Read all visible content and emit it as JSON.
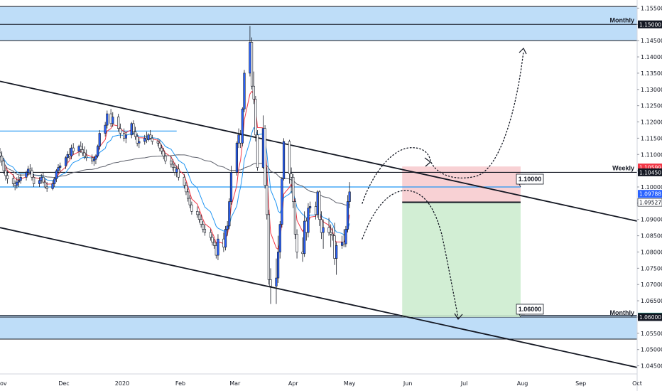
{
  "chart_data": {
    "type": "candlestick",
    "symbol": "EURUSD",
    "timeframe": "daily",
    "x_range": [
      "2019-10-28",
      "2020-10-01"
    ],
    "ylim": [
      1.0425,
      1.1575
    ],
    "x_ticks": [
      {
        "date": "2019-10-28",
        "label": "ov"
      },
      {
        "date": "2019-12-01",
        "label": "Dec"
      },
      {
        "date": "2020-01-01",
        "label": "2020"
      },
      {
        "date": "2020-02-01",
        "label": "Feb"
      },
      {
        "date": "2020-03-01",
        "label": "Mar"
      },
      {
        "date": "2020-04-01",
        "label": "Apr"
      },
      {
        "date": "2020-05-01",
        "label": "May"
      },
      {
        "date": "2020-06-01",
        "label": "Jun"
      },
      {
        "date": "2020-07-01",
        "label": "Jul"
      },
      {
        "date": "2020-08-01",
        "label": "Aug"
      },
      {
        "date": "2020-09-01",
        "label": "Sep"
      },
      {
        "date": "2020-10-01",
        "label": "Oct"
      }
    ],
    "y_ticks": [
      "1.15500",
      "1.15000",
      "1.14500",
      "1.14000",
      "1.13500",
      "1.13000",
      "1.12500",
      "1.12000",
      "1.11500",
      "1.11000",
      "1.10500",
      "1.10000",
      "1.09500",
      "1.09000",
      "1.08500",
      "1.08000",
      "1.07500",
      "1.07000",
      "1.06500",
      "1.06000",
      "1.05500",
      "1.05000",
      "1.04500"
    ],
    "price_badges": [
      {
        "value": 1.10599,
        "label": "1.10599",
        "bg": "#f23645",
        "fg": "#ffffff"
      },
      {
        "value": 1.1045,
        "label": "1.10450",
        "bg": "#131722",
        "fg": "#ffffff"
      },
      {
        "value": 1.09788,
        "label": "1.09788",
        "bg": "#2962ff",
        "fg": "#ffffff"
      },
      {
        "value": 1.09527,
        "label": "1.09527",
        "bg": "#ffffff",
        "fg": "#131722"
      },
      {
        "value": 1.06012,
        "label": "1.06012",
        "bg": "#22ab94",
        "fg": "#ffffff"
      },
      {
        "value": 1.06,
        "label": "1.06000",
        "bg": "#131722",
        "fg": "#ffffff"
      },
      {
        "value": 1.15,
        "label": "1.15000",
        "bg": "#131722",
        "fg": "#ffffff"
      }
    ],
    "zones": [
      {
        "label": "Monthly",
        "from": 1.145,
        "to": 1.1555,
        "line": 1.15,
        "color": "#b3d7f7"
      },
      {
        "label": "Monthly",
        "from": 1.0532,
        "to": 1.0605,
        "line": 1.06,
        "color": "#b3d7f7"
      }
    ],
    "level_lines": [
      {
        "label": "Weekly",
        "value": 1.1045,
        "from": "2019-10-28",
        "to": "2020-10-01",
        "color": "#131722"
      },
      {
        "value": 1.1172,
        "from": "2019-10-28",
        "to": "2020-01-30",
        "color": "#2196f3"
      },
      {
        "value": 1.1,
        "from": "2019-10-28",
        "to": "2020-07-31",
        "color": "#2196f3"
      }
    ],
    "trendlines": [
      {
        "p1": [
          "2019-10-28",
          1.1325
        ],
        "p2": [
          "2020-10-01",
          1.0895
        ]
      },
      {
        "p1": [
          "2019-10-28",
          1.0875
        ],
        "p2": [
          "2020-10-01",
          1.0445
        ]
      }
    ],
    "position": {
      "side": "short",
      "start": "2020-05-29",
      "end": "2020-07-31",
      "entry": 1.0953,
      "stop": 1.1063,
      "target": 1.06,
      "callouts": [
        {
          "text": "1.10000",
          "value": 1.1
        },
        {
          "text": "1.06000",
          "value": 1.06
        }
      ]
    },
    "moving_averages": [
      {
        "color": "#f23645"
      },
      {
        "color": "#2196f3"
      },
      {
        "color": "#5d606b"
      }
    ],
    "ohlc": [
      [
        "2019-10-28",
        1.1105,
        1.112,
        1.1075,
        1.1095
      ],
      [
        "2019-10-29",
        1.1095,
        1.111,
        1.1065,
        1.108
      ],
      [
        "2019-10-30",
        1.108,
        1.109,
        1.104,
        1.105
      ],
      [
        "2019-10-31",
        1.105,
        1.106,
        1.102,
        1.1035
      ],
      [
        "2019-11-01",
        1.1035,
        1.105,
        1.101,
        1.1025
      ],
      [
        "2019-11-04",
        1.1025,
        1.104,
        1.1,
        1.101
      ],
      [
        "2019-11-05",
        1.101,
        1.102,
        1.099,
        1.1005
      ],
      [
        "2019-11-06",
        1.1005,
        1.103,
        1.0995,
        1.1015
      ],
      [
        "2019-11-07",
        1.1015,
        1.1035,
        1.1,
        1.102
      ],
      [
        "2019-11-08",
        1.102,
        1.104,
        1.101,
        1.103
      ],
      [
        "2019-11-11",
        1.103,
        1.105,
        1.102,
        1.1045
      ],
      [
        "2019-11-12",
        1.1045,
        1.1065,
        1.1035,
        1.1055
      ],
      [
        "2019-11-13",
        1.1055,
        1.107,
        1.104,
        1.105
      ],
      [
        "2019-11-14",
        1.105,
        1.106,
        1.102,
        1.103
      ],
      [
        "2019-11-15",
        1.103,
        1.104,
        1.1,
        1.101
      ],
      [
        "2019-11-18",
        1.101,
        1.103,
        1.1,
        1.102
      ],
      [
        "2019-11-19",
        1.102,
        1.104,
        1.101,
        1.103
      ],
      [
        "2019-11-20",
        1.103,
        1.1045,
        1.101,
        1.1015
      ],
      [
        "2019-11-21",
        1.1015,
        1.1025,
        1.0995,
        1.1
      ],
      [
        "2019-11-22",
        1.1,
        1.1015,
        1.0985,
        1.0995
      ],
      [
        "2019-11-25",
        1.0995,
        1.102,
        1.099,
        1.101
      ],
      [
        "2019-11-26",
        1.101,
        1.103,
        1.1,
        1.1025
      ],
      [
        "2019-11-27",
        1.1025,
        1.1055,
        1.1015,
        1.105
      ],
      [
        "2019-11-28",
        1.105,
        1.107,
        1.104,
        1.106
      ],
      [
        "2019-11-29",
        1.106,
        1.1075,
        1.1045,
        1.1065
      ],
      [
        "2019-12-02",
        1.1065,
        1.1095,
        1.1055,
        1.109
      ],
      [
        "2019-12-03",
        1.109,
        1.111,
        1.1075,
        1.11
      ],
      [
        "2019-12-04",
        1.11,
        1.112,
        1.1085,
        1.1095
      ],
      [
        "2019-12-05",
        1.1095,
        1.113,
        1.1085,
        1.112
      ],
      [
        "2019-12-06",
        1.112,
        1.1135,
        1.11,
        1.111
      ],
      [
        "2019-12-09",
        1.111,
        1.113,
        1.1095,
        1.1125
      ],
      [
        "2019-12-10",
        1.1125,
        1.114,
        1.1105,
        1.1115
      ],
      [
        "2019-12-11",
        1.1115,
        1.1135,
        1.1095,
        1.1105
      ],
      [
        "2019-12-12",
        1.1105,
        1.1125,
        1.1085,
        1.1095
      ],
      [
        "2019-12-13",
        1.1095,
        1.1115,
        1.108,
        1.109
      ],
      [
        "2019-12-16",
        1.109,
        1.11,
        1.107,
        1.108
      ],
      [
        "2019-12-17",
        1.108,
        1.1095,
        1.1065,
        1.1085
      ],
      [
        "2019-12-18",
        1.1085,
        1.11,
        1.107,
        1.1095
      ],
      [
        "2019-12-19",
        1.1095,
        1.113,
        1.109,
        1.1125
      ],
      [
        "2019-12-20",
        1.1125,
        1.1175,
        1.1115,
        1.1165
      ],
      [
        "2019-12-23",
        1.1165,
        1.12,
        1.1155,
        1.119
      ],
      [
        "2019-12-24",
        1.119,
        1.1235,
        1.118,
        1.1225
      ],
      [
        "2019-12-26",
        1.1225,
        1.124,
        1.1185,
        1.1195
      ],
      [
        "2019-12-27",
        1.1195,
        1.123,
        1.1185,
        1.1215
      ],
      [
        "2019-12-30",
        1.1215,
        1.1225,
        1.117,
        1.118
      ],
      [
        "2019-12-31",
        1.118,
        1.1195,
        1.115,
        1.1165
      ],
      [
        "2020-01-02",
        1.1165,
        1.118,
        1.114,
        1.115
      ],
      [
        "2020-01-03",
        1.115,
        1.117,
        1.1135,
        1.116
      ],
      [
        "2020-01-06",
        1.116,
        1.12,
        1.115,
        1.1195
      ],
      [
        "2020-01-07",
        1.1195,
        1.1205,
        1.116,
        1.117
      ],
      [
        "2020-01-08",
        1.117,
        1.1185,
        1.1145,
        1.1155
      ],
      [
        "2020-01-09",
        1.1155,
        1.1165,
        1.1125,
        1.1135
      ],
      [
        "2020-01-10",
        1.1135,
        1.115,
        1.112,
        1.114
      ],
      [
        "2020-01-13",
        1.114,
        1.116,
        1.113,
        1.115
      ],
      [
        "2020-01-14",
        1.115,
        1.117,
        1.1135,
        1.1145
      ],
      [
        "2020-01-15",
        1.1145,
        1.1165,
        1.114,
        1.116
      ],
      [
        "2020-01-16",
        1.116,
        1.1175,
        1.1145,
        1.115
      ],
      [
        "2020-01-17",
        1.115,
        1.116,
        1.113,
        1.114
      ],
      [
        "2020-01-20",
        1.114,
        1.115,
        1.1125,
        1.1135
      ],
      [
        "2020-01-21",
        1.1135,
        1.1145,
        1.111,
        1.112
      ],
      [
        "2020-01-22",
        1.112,
        1.113,
        1.11,
        1.111
      ],
      [
        "2020-01-23",
        1.111,
        1.112,
        1.1085,
        1.1095
      ],
      [
        "2020-01-24",
        1.1095,
        1.1105,
        1.107,
        1.108
      ],
      [
        "2020-01-27",
        1.108,
        1.1095,
        1.106,
        1.107
      ],
      [
        "2020-01-28",
        1.107,
        1.1085,
        1.105,
        1.106
      ],
      [
        "2020-01-29",
        1.106,
        1.1075,
        1.1035,
        1.1045
      ],
      [
        "2020-01-30",
        1.1045,
        1.1065,
        1.103,
        1.1055
      ],
      [
        "2020-01-31",
        1.1055,
        1.107,
        1.102,
        1.103
      ],
      [
        "2020-02-03",
        1.103,
        1.104,
        1.0995,
        1.1005
      ],
      [
        "2020-02-04",
        1.1005,
        1.1015,
        1.0975,
        1.0985
      ],
      [
        "2020-02-05",
        1.0985,
        1.0995,
        1.0955,
        1.0965
      ],
      [
        "2020-02-06",
        1.0965,
        1.0975,
        1.0935,
        1.0945
      ],
      [
        "2020-02-07",
        1.0945,
        1.0955,
        1.0915,
        1.0925
      ],
      [
        "2020-02-10",
        1.0925,
        1.094,
        1.0905,
        1.0915
      ],
      [
        "2020-02-11",
        1.0915,
        1.0925,
        1.089,
        1.09
      ],
      [
        "2020-02-12",
        1.09,
        1.0915,
        1.0875,
        1.0885
      ],
      [
        "2020-02-13",
        1.0885,
        1.0895,
        1.086,
        1.087
      ],
      [
        "2020-02-14",
        1.087,
        1.0885,
        1.085,
        1.086
      ],
      [
        "2020-02-17",
        1.086,
        1.087,
        1.0835,
        1.0845
      ],
      [
        "2020-02-18",
        1.0845,
        1.0855,
        1.082,
        1.083
      ],
      [
        "2020-02-19",
        1.083,
        1.084,
        1.081,
        1.082
      ],
      [
        "2020-02-20",
        1.082,
        1.083,
        1.078,
        1.079
      ],
      [
        "2020-02-21",
        1.079,
        1.0855,
        1.0775,
        1.084
      ],
      [
        "2020-02-24",
        1.084,
        1.086,
        1.08,
        1.0815
      ],
      [
        "2020-02-25",
        1.0815,
        1.088,
        1.0805,
        1.087
      ],
      [
        "2020-02-26",
        1.087,
        1.0895,
        1.085,
        1.088
      ],
      [
        "2020-02-27",
        1.088,
        1.0965,
        1.087,
        1.0955
      ],
      [
        "2020-02-28",
        1.0955,
        1.1065,
        1.0945,
        1.1045
      ],
      [
        "2020-03-02",
        1.1045,
        1.114,
        1.1035,
        1.1135
      ],
      [
        "2020-03-03",
        1.1135,
        1.118,
        1.112,
        1.116
      ],
      [
        "2020-03-04",
        1.116,
        1.1175,
        1.112,
        1.1135
      ],
      [
        "2020-03-05",
        1.1135,
        1.1245,
        1.1125,
        1.124
      ],
      [
        "2020-03-06",
        1.124,
        1.136,
        1.123,
        1.135
      ],
      [
        "2020-03-09",
        1.135,
        1.1495,
        1.134,
        1.1445
      ],
      [
        "2020-03-10",
        1.1445,
        1.146,
        1.13,
        1.131
      ],
      [
        "2020-03-11",
        1.131,
        1.1355,
        1.1255,
        1.127
      ],
      [
        "2020-03-12",
        1.127,
        1.128,
        1.114,
        1.116
      ],
      [
        "2020-03-13",
        1.116,
        1.1175,
        1.105,
        1.106
      ],
      [
        "2020-03-16",
        1.106,
        1.122,
        1.1055,
        1.118
      ],
      [
        "2020-03-17",
        1.118,
        1.119,
        1.0995,
        1.1005
      ],
      [
        "2020-03-18",
        1.1005,
        1.106,
        1.09,
        1.0915
      ],
      [
        "2020-03-19",
        1.0915,
        1.093,
        1.07,
        1.0715
      ],
      [
        "2020-03-20",
        1.0715,
        1.075,
        1.064,
        1.0695
      ],
      [
        "2020-03-23",
        1.0695,
        1.078,
        1.064,
        1.072
      ],
      [
        "2020-03-24",
        1.072,
        1.085,
        1.0705,
        1.08
      ],
      [
        "2020-03-25",
        1.08,
        1.0895,
        1.078,
        1.0885
      ],
      [
        "2020-03-26",
        1.0885,
        1.103,
        1.0875,
        1.1025
      ],
      [
        "2020-03-27",
        1.1025,
        1.115,
        1.102,
        1.114
      ],
      [
        "2020-03-30",
        1.114,
        1.1145,
        1.101,
        1.104
      ],
      [
        "2020-03-31",
        1.104,
        1.106,
        1.098,
        1.103
      ],
      [
        "2020-04-01",
        1.103,
        1.104,
        1.0935,
        1.0955
      ],
      [
        "2020-04-02",
        1.0955,
        1.0965,
        1.084,
        1.0855
      ],
      [
        "2020-04-03",
        1.0855,
        1.087,
        1.078,
        1.08
      ],
      [
        "2020-04-06",
        1.08,
        1.0845,
        1.077,
        1.0795
      ],
      [
        "2020-04-07",
        1.0795,
        1.0925,
        1.0785,
        1.0895
      ],
      [
        "2020-04-08",
        1.0895,
        1.0905,
        1.0835,
        1.086
      ],
      [
        "2020-04-09",
        1.086,
        1.095,
        1.0845,
        1.0935
      ],
      [
        "2020-04-10",
        1.0935,
        1.0955,
        1.092,
        1.094
      ],
      [
        "2020-04-13",
        1.094,
        1.0955,
        1.09,
        1.0915
      ],
      [
        "2020-04-14",
        1.0915,
        1.099,
        1.0905,
        1.0985
      ],
      [
        "2020-04-15",
        1.0985,
        1.099,
        1.088,
        1.09
      ],
      [
        "2020-04-16",
        1.09,
        1.0925,
        1.084,
        1.086
      ],
      [
        "2020-04-17",
        1.086,
        1.09,
        1.081,
        1.0875
      ],
      [
        "2020-04-20",
        1.0875,
        1.0905,
        1.085,
        1.086
      ],
      [
        "2020-04-21",
        1.086,
        1.0885,
        1.0815,
        1.0855
      ],
      [
        "2020-04-22",
        1.0855,
        1.0875,
        1.0835,
        1.085
      ],
      [
        "2020-04-23",
        1.085,
        1.089,
        1.076,
        1.078
      ],
      [
        "2020-04-24",
        1.078,
        1.083,
        1.073,
        1.082
      ],
      [
        "2020-04-27",
        1.082,
        1.085,
        1.081,
        1.083
      ],
      [
        "2020-04-28",
        1.083,
        1.087,
        1.0815,
        1.0825
      ],
      [
        "2020-04-29",
        1.0825,
        1.088,
        1.0815,
        1.087
      ],
      [
        "2020-04-30",
        1.087,
        1.0975,
        1.086,
        1.0955
      ],
      [
        "2020-05-01",
        1.0955,
        1.1015,
        1.0935,
        1.0985
      ]
    ]
  }
}
